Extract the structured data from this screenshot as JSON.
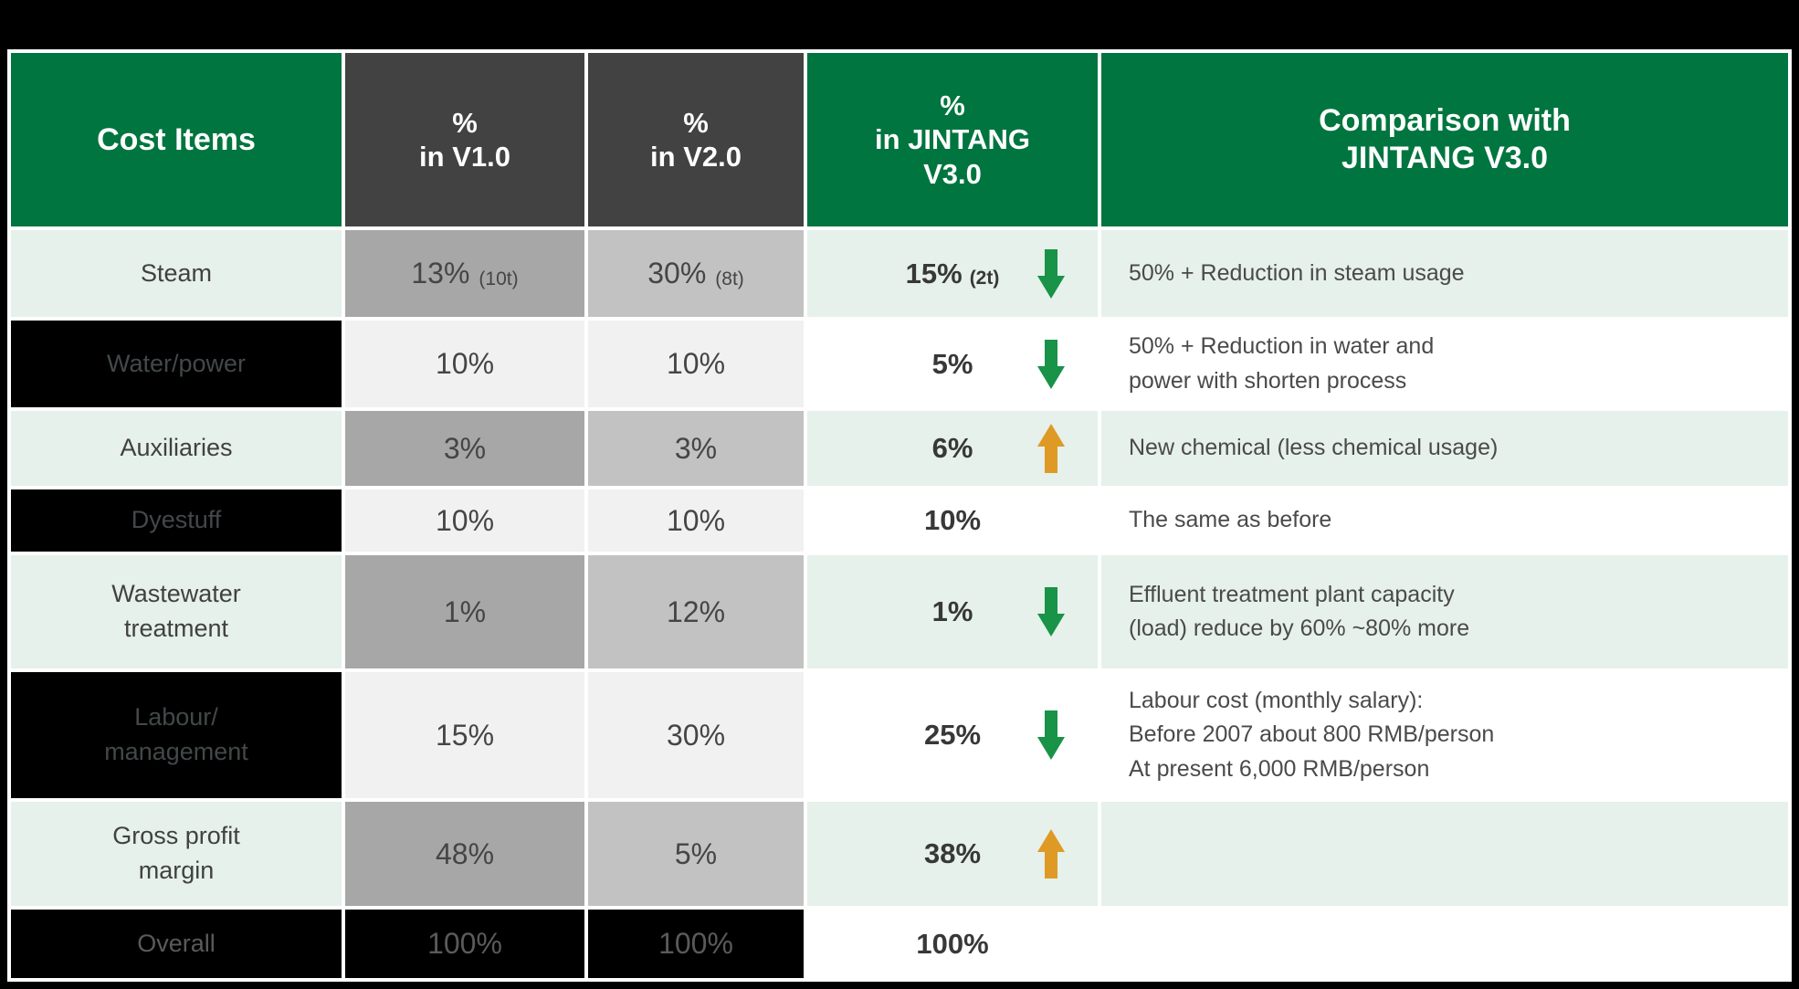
{
  "table": {
    "headers": [
      {
        "label": "Cost Items"
      },
      {
        "label": "%\nin V1.0"
      },
      {
        "label": "%\nin V2.0"
      },
      {
        "label": "%\nin JINTANG\nV3.0"
      },
      {
        "label": "Comparison with\nJINTANG V3.0"
      }
    ],
    "rows": [
      {
        "item": "Steam",
        "v1": "13%",
        "v1_note": "(10t)",
        "v2": "30%",
        "v2_note": "(8t)",
        "v3": "15%",
        "v3_note": "(2t)",
        "trend_icon": "down-arrow-icon",
        "comparison": "50% + Reduction in steam usage"
      },
      {
        "item": "Water/power",
        "v1": "10%",
        "v1_note": "",
        "v2": "10%",
        "v2_note": "",
        "v3": "5%",
        "v3_note": "",
        "trend_icon": "down-arrow-icon",
        "comparison": "50% + Reduction in water and\npower with shorten process"
      },
      {
        "item": "Auxiliaries",
        "v1": "3%",
        "v1_note": "",
        "v2": "3%",
        "v2_note": "",
        "v3": "6%",
        "v3_note": "",
        "trend_icon": "up-arrow-icon",
        "comparison": "New chemical (less chemical usage)"
      },
      {
        "item": "Dyestuff",
        "v1": "10%",
        "v1_note": "",
        "v2": "10%",
        "v2_note": "",
        "v3": "10%",
        "v3_note": "",
        "trend_icon": null,
        "comparison": "The same as before"
      },
      {
        "item": "Wastewater\ntreatment",
        "v1": "1%",
        "v1_note": "",
        "v2": "12%",
        "v2_note": "",
        "v3": "1%",
        "v3_note": "",
        "trend_icon": "down-arrow-icon",
        "comparison": "Effluent treatment plant capacity\n(load) reduce by 60% ~80% more"
      },
      {
        "item": "Labour/\nmanagement",
        "v1": "15%",
        "v1_note": "",
        "v2": "30%",
        "v2_note": "",
        "v3": "25%",
        "v3_note": "",
        "trend_icon": "down-arrow-icon",
        "comparison": "Labour cost (monthly salary):\nBefore 2007 about 800 RMB/person\nAt present 6,000 RMB/person"
      },
      {
        "item": "Gross profit\nmargin",
        "v1": "48%",
        "v1_note": "",
        "v2": "5%",
        "v2_note": "",
        "v3": "38%",
        "v3_note": "",
        "trend_icon": "up-arrow-icon",
        "comparison": ""
      },
      {
        "item": "Overall",
        "v1": "100%",
        "v1_note": "",
        "v2": "100%",
        "v2_note": "",
        "v3": "100%",
        "v3_note": "",
        "trend_icon": null,
        "comparison": ""
      }
    ]
  },
  "colors": {
    "header_green": "#00753F",
    "header_dark": "#424242",
    "row_light_green": "#E5F1EA",
    "v1_gray": "#A7A7A7",
    "v2_gray": "#C2C2C2",
    "even_row_gray": "#F1F1F2",
    "black_cell": "#000000",
    "arrow_down_green": "#189347",
    "arrow_up_orange": "#DF9A26"
  }
}
